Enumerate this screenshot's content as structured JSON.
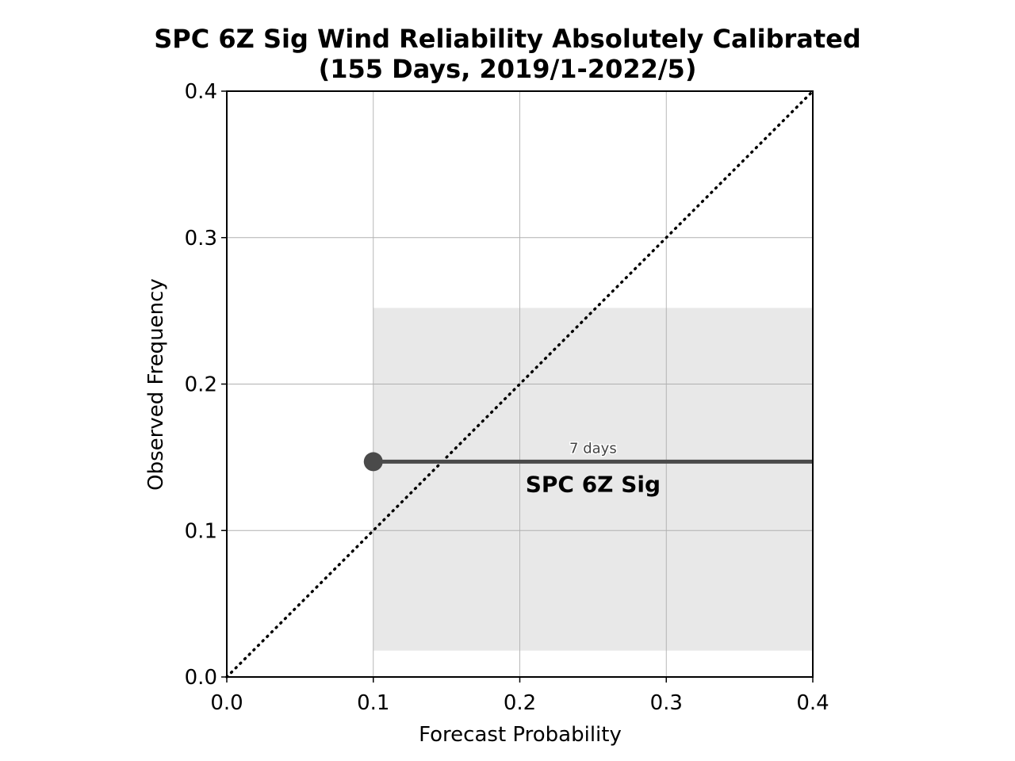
{
  "chart_data": {
    "type": "line",
    "title": "SPC 6Z Sig Wind Reliability Absolutely Calibrated",
    "subtitle": "(155 Days, 2019/1-2022/5)",
    "xlabel": "Forecast Probability",
    "ylabel": "Observed Frequency",
    "xlim": [
      0.0,
      0.4
    ],
    "ylim": [
      0.0,
      0.4
    ],
    "xticks": [
      "0.0",
      "0.1",
      "0.2",
      "0.3",
      "0.4"
    ],
    "yticks": [
      "0.0",
      "0.1",
      "0.2",
      "0.3",
      "0.4"
    ],
    "grid": true,
    "reference_line": {
      "x": [
        0.0,
        0.4
      ],
      "y": [
        0.0,
        0.4
      ],
      "style": "dotted"
    },
    "series": [
      {
        "name": "SPC 6Z Sig",
        "x": [
          0.1,
          0.4
        ],
        "y": [
          0.147,
          0.147
        ],
        "color": "#4a4a4a",
        "point_label": "7 days",
        "band": {
          "x": [
            0.1,
            0.4
          ],
          "lower": 0.018,
          "upper": 0.252,
          "color": "#e8e8e8"
        }
      }
    ]
  }
}
